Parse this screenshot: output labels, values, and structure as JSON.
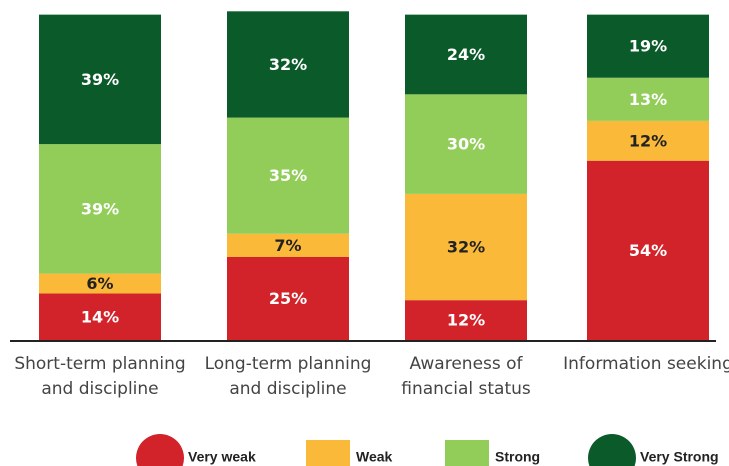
{
  "chart_data": {
    "type": "stacked_bar",
    "categories": [
      "Short-term planning and discipline",
      "Long-term planning and discipline",
      "Awareness of financial status",
      "Information seeking"
    ],
    "ylim": [
      0,
      100
    ],
    "series": [
      {
        "name": "Very weak",
        "color": "#d2232a",
        "legend_marker": "circle",
        "values": [
          14,
          25,
          12,
          54
        ],
        "value_labels": [
          "14%",
          "25%",
          "12%",
          "54%"
        ]
      },
      {
        "name": "Weak",
        "color": "#fbb93a",
        "legend_marker": "square",
        "values": [
          6,
          7,
          32,
          12
        ],
        "value_labels": [
          "6%",
          "7%",
          "32%",
          "12%"
        ]
      },
      {
        "name": "Strong",
        "color": "#92cd5a",
        "legend_marker": "square",
        "values": [
          39,
          35,
          30,
          13
        ],
        "value_labels": [
          "39%",
          "35%",
          "30%",
          "13%"
        ]
      },
      {
        "name": "Very Strong",
        "color": "#0b5a2a",
        "legend_marker": "circle",
        "values": [
          39,
          32,
          24,
          19
        ],
        "value_labels": [
          "39%",
          "32%",
          "24%",
          "19%"
        ]
      }
    ]
  }
}
